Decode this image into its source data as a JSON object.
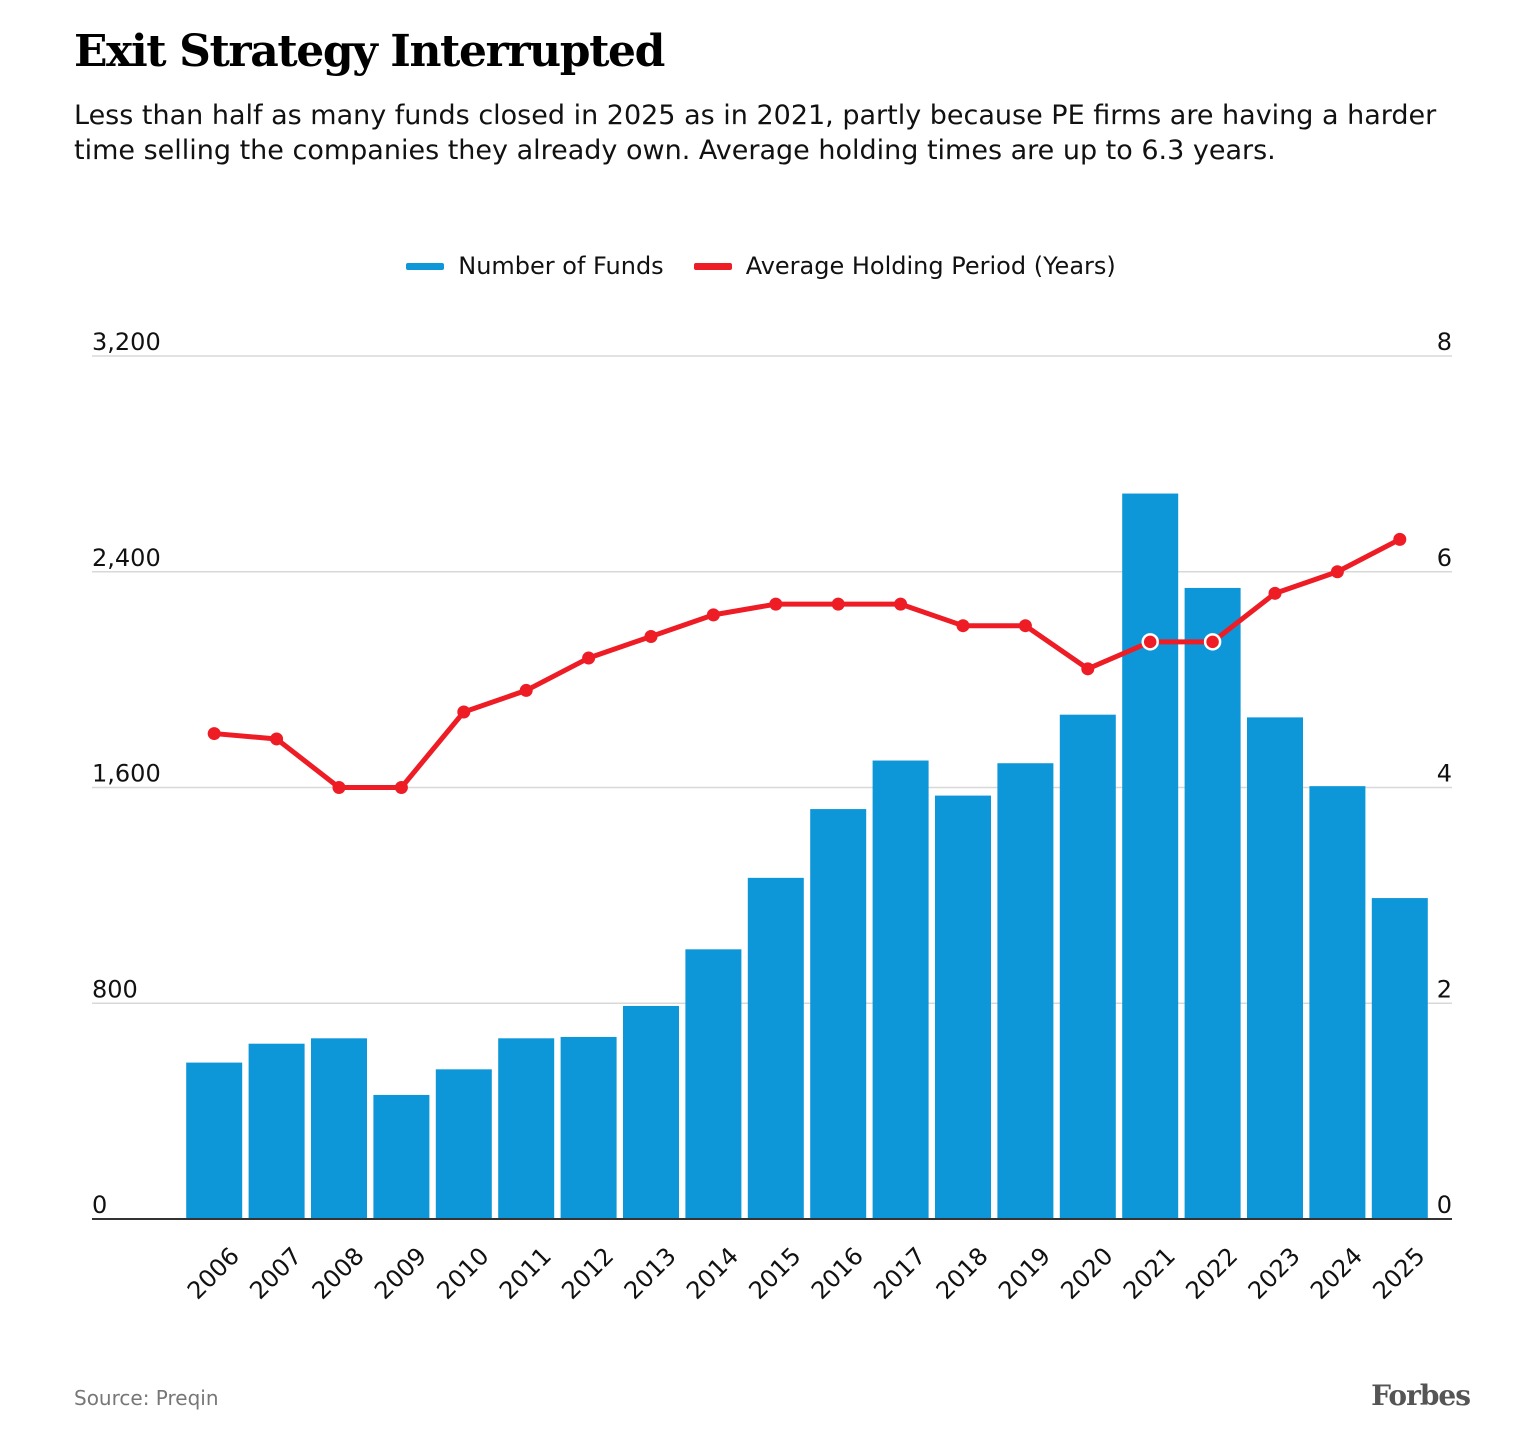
{
  "title": "Exit Strategy Interrupted",
  "subtitle": "Less than half as many funds closed in 2025 as in 2021, partly because PE firms are having a harder time selling the companies they already own. Average holding times are up to 6.3 years.",
  "legend": {
    "funds_label": "Number of Funds",
    "holding_label": "Average Holding Period (Years)"
  },
  "source": "Source: Preqin",
  "brand": "Forbes",
  "colors": {
    "bar": "#0e97d8",
    "line": "#ee1c25",
    "grid": "#d8d8d8",
    "axis": "#333333",
    "text": "#111111"
  },
  "chart_data": {
    "type": "bar",
    "title": "Exit Strategy Interrupted",
    "categories": [
      "2006",
      "2007",
      "2008",
      "2009",
      "2010",
      "2011",
      "2012",
      "2013",
      "2014",
      "2015",
      "2016",
      "2017",
      "2018",
      "2019",
      "2020",
      "2021",
      "2022",
      "2023",
      "2024",
      "2025"
    ],
    "series": [
      {
        "name": "Number of Funds",
        "type": "bar",
        "axis": "left",
        "values": [
          580,
          650,
          670,
          460,
          555,
          670,
          675,
          790,
          1000,
          1265,
          1520,
          1700,
          1570,
          1690,
          1870,
          2690,
          2340,
          1860,
          1605,
          1190
        ]
      },
      {
        "name": "Average Holding Period (Years)",
        "type": "line",
        "axis": "right",
        "values": [
          4.5,
          4.45,
          4.0,
          4.0,
          4.7,
          4.9,
          5.2,
          5.4,
          5.6,
          5.7,
          5.7,
          5.7,
          5.5,
          5.5,
          5.1,
          5.35,
          5.35,
          5.8,
          6.0,
          6.3
        ]
      }
    ],
    "yaxis_left": {
      "range": [
        0,
        3200
      ],
      "ticks": [
        0,
        800,
        1600,
        2400,
        3200
      ],
      "tick_labels": [
        "0",
        "800",
        "1,600",
        "2,400",
        "3,200"
      ]
    },
    "yaxis_right": {
      "range": [
        0,
        8
      ],
      "ticks": [
        0,
        2,
        4,
        6,
        8
      ],
      "tick_labels": [
        "0",
        "2",
        "4",
        "6",
        "8"
      ]
    },
    "grid": true,
    "legend_position": "top-center"
  }
}
